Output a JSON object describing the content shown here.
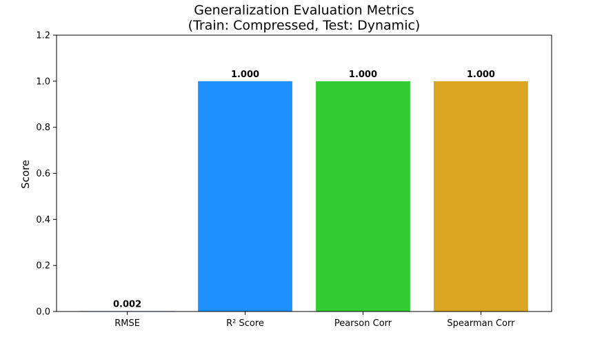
{
  "chart_data": {
    "type": "bar",
    "title": "Generalization Evaluation Metrics",
    "subtitle": "(Train: Compressed, Test: Dynamic)",
    "xlabel": "",
    "ylabel": "Score",
    "categories": [
      "RMSE",
      "R² Score",
      "Pearson Corr",
      "Spearman Corr"
    ],
    "values": [
      0.002,
      1.0,
      1.0,
      1.0
    ],
    "value_labels": [
      "0.002",
      "1.000",
      "1.000",
      "1.000"
    ],
    "colors": [
      "#4c72b0",
      "#1e90ff",
      "#32cd32",
      "#daa520"
    ],
    "ylim": [
      0,
      1.2
    ],
    "yticks": [
      0.0,
      0.2,
      0.4,
      0.6,
      0.8,
      1.0,
      1.2
    ],
    "ytick_labels": [
      "0.0",
      "0.2",
      "0.4",
      "0.6",
      "0.8",
      "1.0",
      "1.2"
    ],
    "grid": false,
    "legend": "none"
  }
}
